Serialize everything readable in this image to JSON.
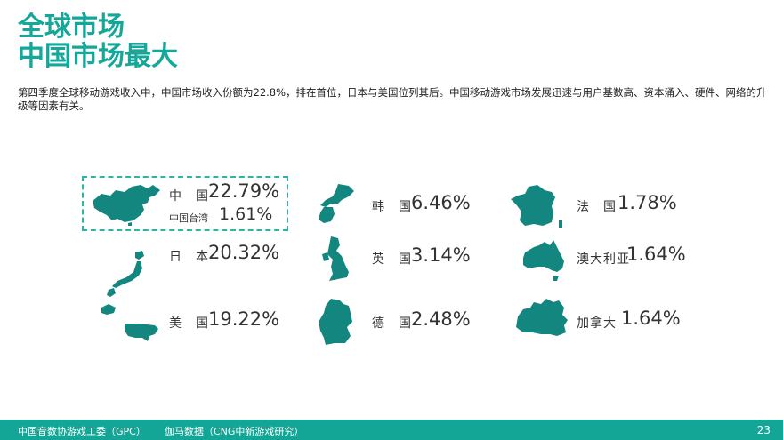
{
  "title": {
    "line1": "全球市场",
    "line2": "中国市场最大"
  },
  "description": "第四季度全球移动游戏收入中，中国市场收入份额为22.8%，排在首位，日本与美国位列其后。中国移动游戏市场发展迅速与用户基数高、资本涌入、硬件、网络的升级等因素有关。",
  "accent_color": "#13a595",
  "markets": {
    "china": {
      "label": "中　国",
      "value": "22.79%"
    },
    "taiwan": {
      "label": "中国台湾",
      "value": "1.61%"
    },
    "japan": {
      "label": "日　本",
      "value": "20.32%"
    },
    "usa": {
      "label": "美　国",
      "value": "19.22%"
    },
    "korea": {
      "label": "韩　国",
      "value": "6.46%"
    },
    "uk": {
      "label": "英　国",
      "value": "3.14%"
    },
    "germany": {
      "label": "德　国",
      "value": "2.48%"
    },
    "france": {
      "label": "法　国",
      "value": "1.78%"
    },
    "australia": {
      "label": "澳大利亚",
      "value": "1.64%"
    },
    "canada": {
      "label": "加拿大",
      "value": "1.64%"
    }
  },
  "footer": {
    "source1": "中国音数协游戏工委（GPC）",
    "source2": "伽马数据（CNG中新游戏研究）",
    "page": "23"
  }
}
